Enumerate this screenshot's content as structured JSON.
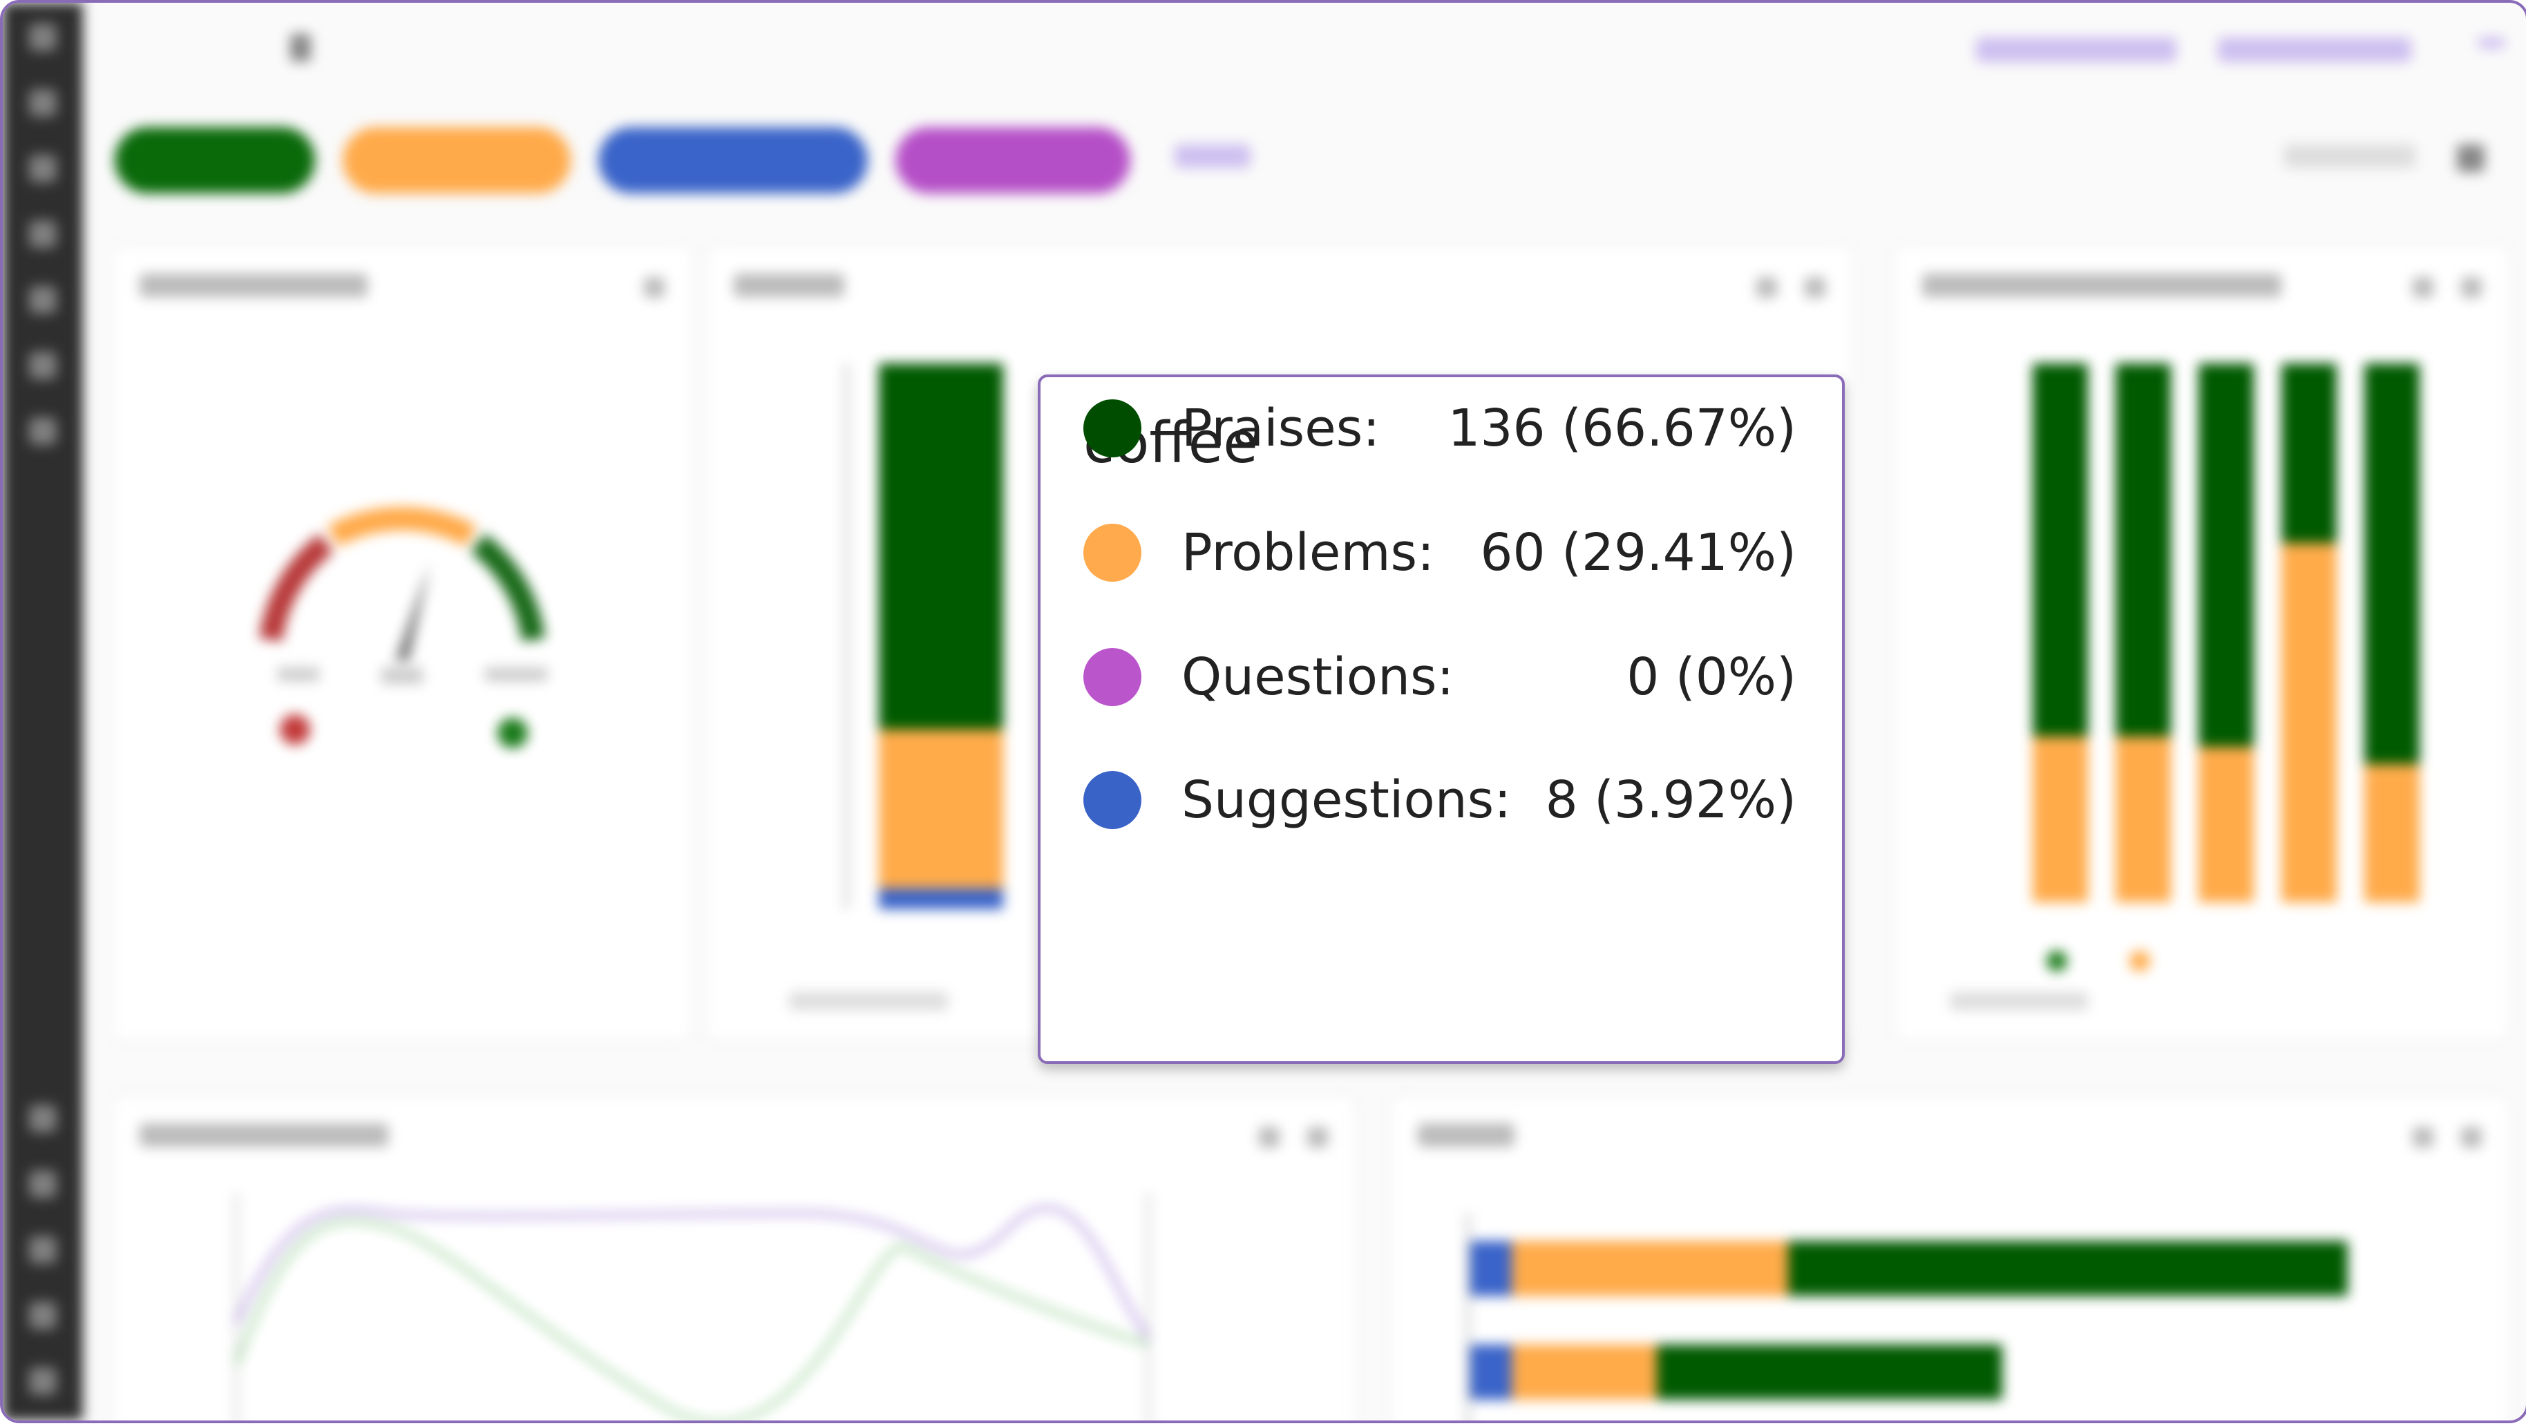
{
  "tooltip": {
    "title": "coffee",
    "rows": [
      {
        "label": "Praises:",
        "value": "136 (66.67%)",
        "color": "#004d00"
      },
      {
        "label": "Problems:",
        "value": "60 (29.41%)",
        "color": "#ffaa4d"
      },
      {
        "label": "Questions:",
        "value": "0 (0%)",
        "color": "#bb55cc"
      },
      {
        "label": "Suggestions:",
        "value": "8 (3.92%)",
        "color": "#3a63c8"
      }
    ]
  },
  "colors": {
    "praises": "#006400",
    "problems": "#ffab4a",
    "questions": "#b54fc7",
    "suggestions": "#3a64c9",
    "accent": "#8a6bb8"
  }
}
